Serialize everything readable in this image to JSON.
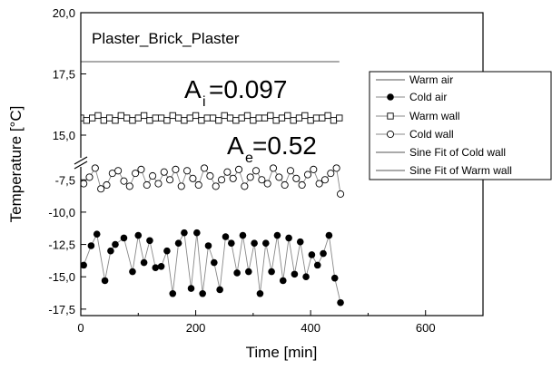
{
  "chart_data": {
    "type": "scatter",
    "title": "Plaster_Brick_Plaster",
    "xlabel": "Time [min]",
    "ylabel": "Temperature [°C]",
    "xlim": [
      0,
      700
    ],
    "x_ticks": [
      "0",
      "200",
      "400",
      "600"
    ],
    "x_tick_values": [
      0,
      200,
      400,
      600
    ],
    "axis_break": "between -6.5 and 14.0",
    "upper_ylim": [
      14.0,
      20.0
    ],
    "upper_ticks": [
      "15,0",
      "17,5",
      "20,0"
    ],
    "upper_tick_values": [
      15.0,
      17.5,
      20.0
    ],
    "lower_ylim": [
      -18.0,
      -6.5
    ],
    "lower_ticks": [
      "-7,5",
      "-10,0",
      "-12,5",
      "-15,0",
      "-17,5"
    ],
    "lower_tick_values": [
      -7.5,
      -10.0,
      -12.5,
      -15.0,
      -17.5
    ],
    "annotations": {
      "ai_main": "A",
      "ai_sub": "i",
      "ai_value": "=0.097",
      "ae_main": "A",
      "ae_sub": "e",
      "ae_value": "=0.52"
    },
    "legend": {
      "position": "right",
      "entries": [
        "Warm air",
        "Cold air",
        "Warm wall",
        "Cold wall",
        "Sine Fit of Cold wall",
        "Sine Fit of Warm wall"
      ]
    },
    "series": [
      {
        "name": "Warm air",
        "style": "line",
        "x": [
          0,
          450
        ],
        "y": [
          18.0,
          18.0
        ]
      },
      {
        "name": "Warm wall",
        "style": "open-square",
        "x": [
          0,
          10,
          20,
          30,
          40,
          50,
          60,
          70,
          80,
          90,
          100,
          110,
          120,
          130,
          140,
          150,
          160,
          170,
          180,
          190,
          200,
          210,
          220,
          230,
          240,
          250,
          260,
          270,
          280,
          290,
          300,
          310,
          320,
          330,
          340,
          350,
          360,
          370,
          380,
          390,
          400,
          410,
          420,
          430,
          440,
          450
        ],
        "y": [
          15.7,
          15.6,
          15.7,
          15.8,
          15.6,
          15.7,
          15.6,
          15.8,
          15.7,
          15.6,
          15.7,
          15.8,
          15.6,
          15.7,
          15.7,
          15.6,
          15.8,
          15.7,
          15.6,
          15.7,
          15.8,
          15.6,
          15.7,
          15.7,
          15.6,
          15.8,
          15.7,
          15.6,
          15.7,
          15.8,
          15.6,
          15.7,
          15.7,
          15.8,
          15.6,
          15.7,
          15.8,
          15.6,
          15.7,
          15.8,
          15.6,
          15.7,
          15.7,
          15.8,
          15.6,
          15.7
        ]
      },
      {
        "name": "Cold wall",
        "style": "open-circle",
        "x": [
          5,
          15,
          25,
          35,
          45,
          55,
          65,
          75,
          85,
          95,
          105,
          115,
          125,
          135,
          145,
          155,
          165,
          175,
          185,
          195,
          205,
          215,
          225,
          235,
          245,
          255,
          265,
          275,
          285,
          295,
          305,
          315,
          325,
          335,
          345,
          355,
          365,
          375,
          385,
          395,
          405,
          415,
          425,
          435,
          445,
          452
        ],
        "y": [
          -7.8,
          -7.3,
          -6.6,
          -8.2,
          -7.9,
          -7.0,
          -6.8,
          -7.6,
          -8.0,
          -7.0,
          -6.7,
          -7.9,
          -7.2,
          -7.8,
          -6.9,
          -7.5,
          -6.7,
          -8.0,
          -6.8,
          -7.4,
          -7.9,
          -6.6,
          -7.2,
          -8.0,
          -7.5,
          -6.9,
          -7.4,
          -6.7,
          -8.0,
          -7.3,
          -6.8,
          -7.5,
          -7.8,
          -6.6,
          -7.3,
          -7.9,
          -6.8,
          -7.4,
          -7.9,
          -7.1,
          -6.7,
          -7.8,
          -7.5,
          -7.0,
          -6.6,
          -8.6
        ]
      },
      {
        "name": "Cold air",
        "style": "filled-circle",
        "x": [
          5,
          18,
          28,
          42,
          52,
          60,
          75,
          90,
          100,
          110,
          120,
          130,
          140,
          150,
          160,
          170,
          180,
          192,
          202,
          212,
          222,
          232,
          242,
          252,
          262,
          272,
          282,
          292,
          302,
          312,
          322,
          332,
          342,
          352,
          362,
          372,
          382,
          392,
          402,
          412,
          422,
          432,
          442,
          452
        ],
        "y": [
          -14.1,
          -12.6,
          -11.7,
          -15.3,
          -13.0,
          -12.5,
          -12.0,
          -14.6,
          -11.8,
          -13.9,
          -12.2,
          -14.3,
          -14.2,
          -13.0,
          -16.3,
          -12.4,
          -11.6,
          -15.9,
          -11.6,
          -16.3,
          -12.6,
          -13.9,
          -16.0,
          -11.9,
          -12.4,
          -14.7,
          -11.8,
          -14.6,
          -12.4,
          -16.3,
          -12.4,
          -14.6,
          -11.8,
          -15.3,
          -12.0,
          -14.8,
          -12.3,
          -15.0,
          -13.3,
          -14.1,
          -13.2,
          -11.8,
          -15.1,
          -17.0
        ]
      }
    ]
  }
}
